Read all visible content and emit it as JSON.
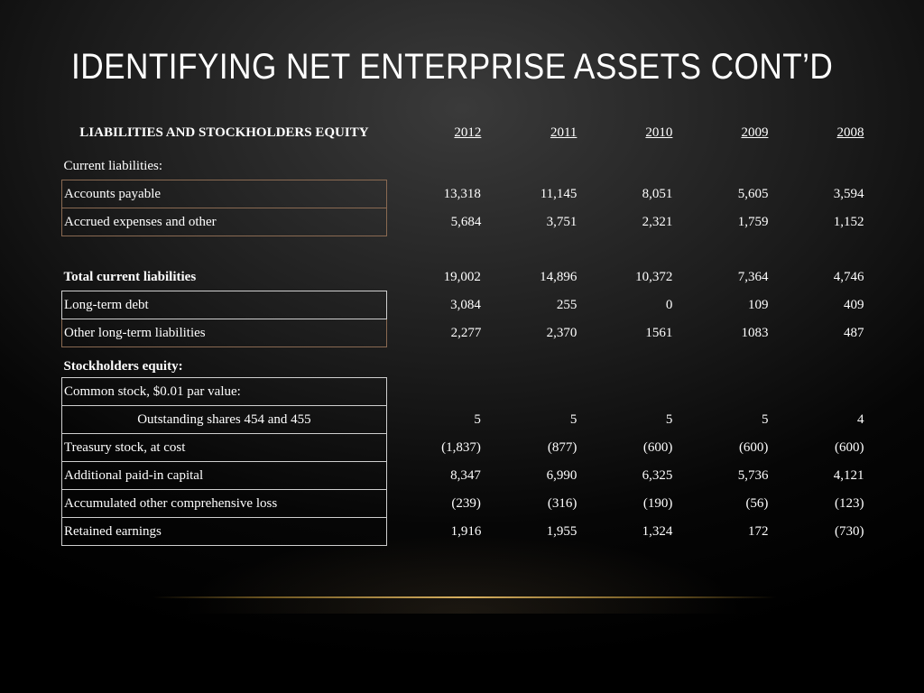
{
  "slide": {
    "title": "IDENTIFYING NET ENTERPRISE ASSETS CONT’D"
  },
  "table": {
    "header": {
      "label": "LIABILITIES AND STOCKHOLDERS EQUITY",
      "years": [
        "2012",
        "2011",
        "2010",
        "2009",
        "2008"
      ]
    },
    "rows": [
      {
        "label": "Current liabilities:",
        "values": [
          "",
          "",
          "",
          "",
          ""
        ]
      },
      {
        "label": "Accounts payable",
        "values": [
          "13,318",
          "11,145",
          "8,051",
          "5,605",
          "3,594"
        ]
      },
      {
        "label": "Accrued expenses and other",
        "values": [
          "5,684",
          "3,751",
          "2,321",
          "1,759",
          "1,152"
        ]
      },
      {
        "label": "",
        "values": [
          "",
          "",
          "",
          "",
          ""
        ]
      },
      {
        "label": "Total current liabilities",
        "values": [
          "19,002",
          "14,896",
          "10,372",
          "7,364",
          "4,746"
        ]
      },
      {
        "label": "Long-term debt",
        "values": [
          "3,084",
          "255",
          "0",
          "109",
          "409"
        ]
      },
      {
        "label": "Other long-term liabilities",
        "values": [
          "2,277",
          "2,370",
          "1561",
          "1083",
          "487"
        ]
      },
      {
        "label": "Stockholders equity:",
        "values": [
          "",
          "",
          "",
          "",
          ""
        ]
      },
      {
        "label": "Common stock, $0.01 par value:",
        "values": [
          "",
          "",
          "",
          "",
          ""
        ]
      },
      {
        "label": "Outstanding shares 454 and 455",
        "values": [
          "5",
          "5",
          "5",
          "5",
          "4"
        ]
      },
      {
        "label": "Treasury stock, at cost",
        "values": [
          "(1,837)",
          "(877)",
          "(600)",
          "(600)",
          "(600)"
        ]
      },
      {
        "label": "Additional paid-in capital",
        "values": [
          "8,347",
          "6,990",
          "6,325",
          "5,736",
          "4,121"
        ]
      },
      {
        "label": "Accumulated other comprehensive loss",
        "values": [
          "(239)",
          "(316)",
          "(190)",
          "(56)",
          "(123)"
        ]
      },
      {
        "label": "Retained earnings",
        "values": [
          "1,916",
          "1,955",
          "1,324",
          "172",
          "(730)"
        ]
      }
    ]
  }
}
